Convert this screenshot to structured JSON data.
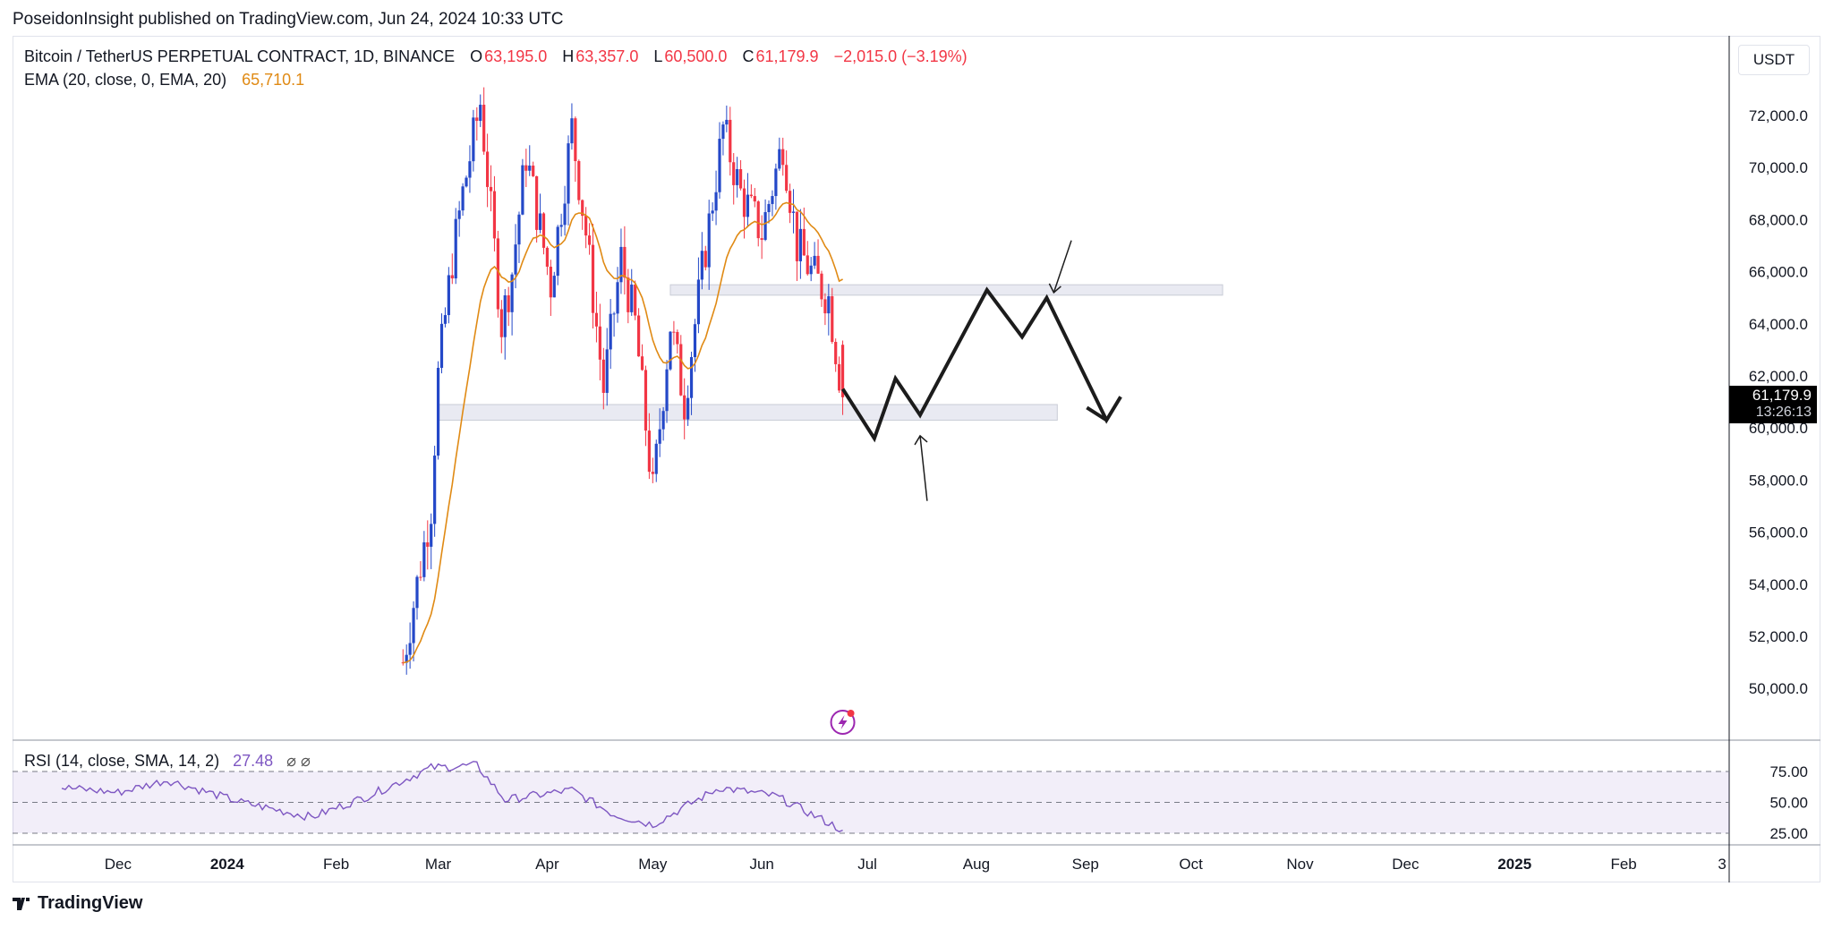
{
  "publisher_line": "PoseidonInsight published on TradingView.com, Jun 24, 2024 10:33 UTC",
  "footer_brand": "TradingView",
  "currency_button": "USDT",
  "legend": {
    "symbol": "Bitcoin / TetherUS PERPETUAL CONTRACT, 1D, BINANCE",
    "o_label": "O",
    "o_value": "63,195.0",
    "h_label": "H",
    "h_value": "63,357.0",
    "l_label": "L",
    "l_value": "60,500.0",
    "c_label": "C",
    "c_value": "61,179.9",
    "change": "−2,015.0 (−3.19%)",
    "ema_label": "EMA (20, close, 0, EMA, 20)",
    "ema_value": "65,710.1"
  },
  "rsi_legend": {
    "label": "RSI (14, close, SMA, 14, 2)",
    "value": "27.48",
    "extra": "⌀ ⌀"
  },
  "price_tag": {
    "price": "61,179.9",
    "countdown": "13:26:13"
  },
  "colors": {
    "up": "#2448c8",
    "down": "#f23645",
    "ema": "#e08a14",
    "rsi": "#7e57c2",
    "zone": "#e9eaf2",
    "drawing": "#1c1c1c"
  },
  "icons": [
    "tradingview-logo-icon",
    "flash-event-icon"
  ],
  "chart_data": {
    "type": "candlestick",
    "title": "Bitcoin / TetherUS PERPETUAL CONTRACT, 1D, BINANCE",
    "y_axis_label": "USDT",
    "y_ticks": [
      "72,000.0",
      "70,000.0",
      "68,000.0",
      "66,000.0",
      "64,000.0",
      "62,000.0",
      "60,000.0",
      "58,000.0",
      "56,000.0",
      "54,000.0",
      "52,000.0",
      "50,000.0"
    ],
    "x_ticks": [
      "Dec",
      "2024",
      "Feb",
      "Mar",
      "Apr",
      "May",
      "Jun",
      "Jul",
      "Aug",
      "Sep",
      "Oct",
      "Nov",
      "Dec",
      "2025",
      "Feb",
      "3"
    ],
    "last_price": 61179.9,
    "ema20_last": 65710.1,
    "price_path": [
      {
        "date": "2024-02-20",
        "value": 51000
      },
      {
        "date": "2024-02-28",
        "value": 57000
      },
      {
        "date": "2024-03-01",
        "value": 62000
      },
      {
        "date": "2024-03-05",
        "value": 66500
      },
      {
        "date": "2024-03-08",
        "value": 69000
      },
      {
        "date": "2024-03-13",
        "value": 72500
      },
      {
        "date": "2024-03-19",
        "value": 64000
      },
      {
        "date": "2024-03-22",
        "value": 66000
      },
      {
        "date": "2024-03-26",
        "value": 70500
      },
      {
        "date": "2024-04-02",
        "value": 65500
      },
      {
        "date": "2024-04-08",
        "value": 71500
      },
      {
        "date": "2024-04-12",
        "value": 67500
      },
      {
        "date": "2024-04-17",
        "value": 61500
      },
      {
        "date": "2024-04-22",
        "value": 66500
      },
      {
        "date": "2024-04-26",
        "value": 64000
      },
      {
        "date": "2024-05-01",
        "value": 57500
      },
      {
        "date": "2024-05-06",
        "value": 64000
      },
      {
        "date": "2024-05-10",
        "value": 61000
      },
      {
        "date": "2024-05-15",
        "value": 66000
      },
      {
        "date": "2024-05-21",
        "value": 71500
      },
      {
        "date": "2024-05-26",
        "value": 69000
      },
      {
        "date": "2024-06-01",
        "value": 67500
      },
      {
        "date": "2024-06-07",
        "value": 71000
      },
      {
        "date": "2024-06-11",
        "value": 67000
      },
      {
        "date": "2024-06-15",
        "value": 66000
      },
      {
        "date": "2024-06-20",
        "value": 65000
      },
      {
        "date": "2024-06-24",
        "value": 61179.9
      }
    ],
    "support_zone": {
      "low": 60300,
      "high": 60900,
      "from": "2024-03-01",
      "to": "2024-08-24"
    },
    "resistance_zone": {
      "low": 65100,
      "high": 65500,
      "from": "2024-05-06",
      "to": "2024-10-10"
    },
    "projection_path": [
      {
        "date": "2024-06-24",
        "value": 61500
      },
      {
        "date": "2024-07-03",
        "value": 59600
      },
      {
        "date": "2024-07-09",
        "value": 61900
      },
      {
        "date": "2024-07-16",
        "value": 60500
      },
      {
        "date": "2024-08-04",
        "value": 65300
      },
      {
        "date": "2024-08-14",
        "value": 63500
      },
      {
        "date": "2024-08-21",
        "value": 65000
      },
      {
        "date": "2024-09-07",
        "value": 60300
      },
      {
        "date": "2024-09-11",
        "value": 61200
      }
    ],
    "rsi": {
      "period": 14,
      "last": 27.48,
      "levels": [
        75,
        50,
        25
      ],
      "y_ticks": [
        "75.00",
        "50.00",
        "25.00"
      ],
      "path": [
        {
          "date": "2023-11-15",
          "value": 62
        },
        {
          "date": "2023-12-01",
          "value": 58
        },
        {
          "date": "2023-12-15",
          "value": 68
        },
        {
          "date": "2024-01-05",
          "value": 50
        },
        {
          "date": "2024-01-25",
          "value": 38
        },
        {
          "date": "2024-02-10",
          "value": 55
        },
        {
          "date": "2024-02-28",
          "value": 78
        },
        {
          "date": "2024-03-12",
          "value": 80
        },
        {
          "date": "2024-03-20",
          "value": 52
        },
        {
          "date": "2024-04-08",
          "value": 60
        },
        {
          "date": "2024-04-20",
          "value": 40
        },
        {
          "date": "2024-05-01",
          "value": 32
        },
        {
          "date": "2024-05-20",
          "value": 62
        },
        {
          "date": "2024-06-05",
          "value": 55
        },
        {
          "date": "2024-06-12",
          "value": 45
        },
        {
          "date": "2024-06-24",
          "value": 27.48
        }
      ]
    }
  }
}
